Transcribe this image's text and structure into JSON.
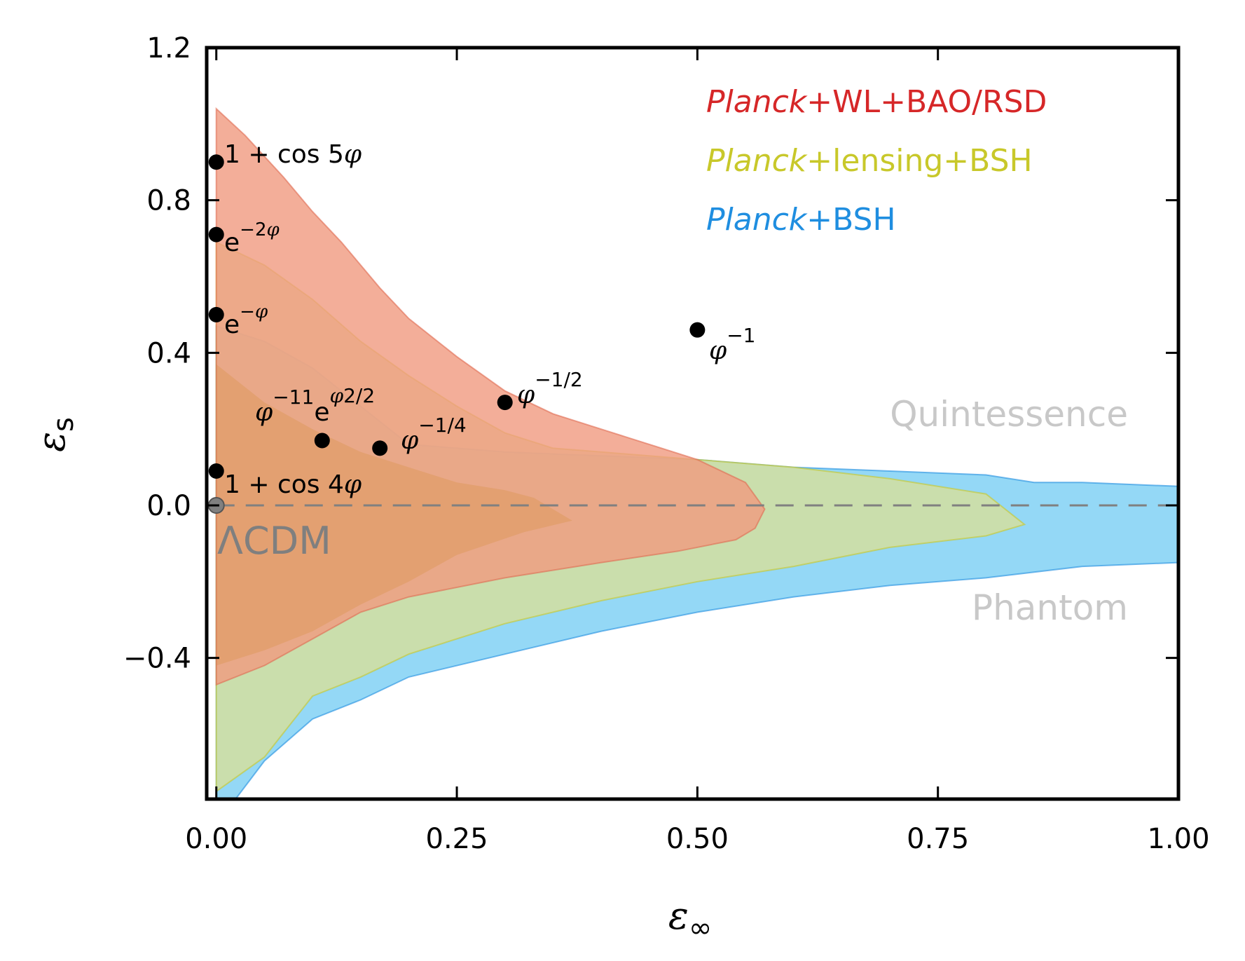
{
  "chart_data": {
    "type": "area",
    "xlabel": "ε∞",
    "ylabel": "εs",
    "xlim": [
      -0.01,
      1.0
    ],
    "ylim": [
      -0.77,
      1.2
    ],
    "xticks": [
      "0.00",
      "0.25",
      "0.50",
      "0.75",
      "1.00"
    ],
    "yticks": [
      "−0.4",
      "0.0",
      "0.4",
      "0.8",
      "1.2"
    ],
    "grid": false,
    "legend_position": "top-right",
    "legend": [
      {
        "italic": "Planck",
        "rest": "+WL+BAO/RSD",
        "color": "#d62728"
      },
      {
        "italic": "Planck",
        "rest": "+lensing+BSH",
        "color": "#c8c82a"
      },
      {
        "italic": "Planck",
        "rest": "+BSH",
        "color": "#1f8ee0"
      }
    ],
    "series": [
      {
        "name": "Planck+BSH",
        "fill": "#8ed6f5",
        "outer": [
          [
            0,
            0.47
          ],
          [
            0.05,
            0.43
          ],
          [
            0.1,
            0.36
          ],
          [
            0.15,
            0.26
          ],
          [
            0.2,
            0.16
          ],
          [
            0.3,
            0.14
          ],
          [
            0.4,
            0.13
          ],
          [
            0.5,
            0.12
          ],
          [
            0.6,
            0.1
          ],
          [
            0.7,
            0.09
          ],
          [
            0.8,
            0.08
          ],
          [
            0.85,
            0.06
          ],
          [
            0.9,
            0.06
          ],
          [
            1.0,
            0.05
          ],
          [
            1.0,
            -0.15
          ],
          [
            0.9,
            -0.16
          ],
          [
            0.8,
            -0.19
          ],
          [
            0.7,
            -0.21
          ],
          [
            0.6,
            -0.24
          ],
          [
            0.5,
            -0.28
          ],
          [
            0.4,
            -0.33
          ],
          [
            0.3,
            -0.39
          ],
          [
            0.2,
            -0.45
          ],
          [
            0.15,
            -0.51
          ],
          [
            0.1,
            -0.56
          ],
          [
            0.05,
            -0.67
          ],
          [
            0.02,
            -0.77
          ],
          [
            0,
            -0.77
          ]
        ]
      },
      {
        "name": "Planck+lensing+BSH",
        "fill": "#d7e09a",
        "outer": [
          [
            0,
            0.69
          ],
          [
            0.05,
            0.63
          ],
          [
            0.1,
            0.54
          ],
          [
            0.15,
            0.43
          ],
          [
            0.2,
            0.34
          ],
          [
            0.25,
            0.26
          ],
          [
            0.3,
            0.19
          ],
          [
            0.35,
            0.15
          ],
          [
            0.4,
            0.14
          ],
          [
            0.5,
            0.12
          ],
          [
            0.6,
            0.1
          ],
          [
            0.7,
            0.07
          ],
          [
            0.8,
            0.03
          ],
          [
            0.84,
            -0.05
          ],
          [
            0.8,
            -0.08
          ],
          [
            0.7,
            -0.11
          ],
          [
            0.6,
            -0.16
          ],
          [
            0.5,
            -0.2
          ],
          [
            0.4,
            -0.25
          ],
          [
            0.3,
            -0.31
          ],
          [
            0.2,
            -0.39
          ],
          [
            0.15,
            -0.45
          ],
          [
            0.1,
            -0.5
          ],
          [
            0.05,
            -0.66
          ],
          [
            0,
            -0.75
          ]
        ],
        "inner": [
          [
            0,
            0.37
          ],
          [
            0.05,
            0.27
          ],
          [
            0.1,
            0.2
          ],
          [
            0.15,
            0.14
          ],
          [
            0.2,
            0.1
          ],
          [
            0.25,
            0.06
          ],
          [
            0.3,
            0.04
          ],
          [
            0.33,
            0.02
          ],
          [
            0.37,
            -0.04
          ],
          [
            0.32,
            -0.07
          ],
          [
            0.25,
            -0.13
          ],
          [
            0.2,
            -0.2
          ],
          [
            0.15,
            -0.26
          ],
          [
            0.1,
            -0.33
          ],
          [
            0.05,
            -0.38
          ],
          [
            0,
            -0.42
          ]
        ]
      },
      {
        "name": "Planck+WL+BAO/RSD",
        "fill": "#f09a80",
        "stroke": "#e06a52",
        "outer": [
          [
            0,
            1.04
          ],
          [
            0.03,
            0.97
          ],
          [
            0.07,
            0.86
          ],
          [
            0.1,
            0.77
          ],
          [
            0.13,
            0.69
          ],
          [
            0.17,
            0.57
          ],
          [
            0.2,
            0.49
          ],
          [
            0.25,
            0.39
          ],
          [
            0.3,
            0.3
          ],
          [
            0.35,
            0.24
          ],
          [
            0.4,
            0.2
          ],
          [
            0.45,
            0.16
          ],
          [
            0.5,
            0.12
          ],
          [
            0.55,
            0.06
          ],
          [
            0.57,
            -0.01
          ],
          [
            0.56,
            -0.06
          ],
          [
            0.54,
            -0.09
          ],
          [
            0.48,
            -0.12
          ],
          [
            0.4,
            -0.15
          ],
          [
            0.3,
            -0.19
          ],
          [
            0.2,
            -0.24
          ],
          [
            0.15,
            -0.28
          ],
          [
            0.1,
            -0.35
          ],
          [
            0.05,
            -0.42
          ],
          [
            0,
            -0.47
          ]
        ]
      }
    ],
    "points": [
      {
        "label": "1 + cos 5φ",
        "x": 0.0,
        "y": 0.9
      },
      {
        "label": "e^{−2φ}",
        "x": 0.0,
        "y": 0.71
      },
      {
        "label": "e^{−φ}",
        "x": 0.0,
        "y": 0.5
      },
      {
        "label": "φ^{−1}",
        "x": 0.5,
        "y": 0.46
      },
      {
        "label": "φ^{−1/2}",
        "x": 0.3,
        "y": 0.27
      },
      {
        "label": "φ^{−1/4}",
        "x": 0.17,
        "y": 0.15
      },
      {
        "label": "φ^{−1}",
        "x": 0.11,
        "y": 0.17
      },
      {
        "label": "1 + cos 4φ",
        "x": 0.0,
        "y": 0.09
      },
      {
        "label": "ΛCDM",
        "x": 0.0,
        "y": 0.0
      }
    ],
    "annotations": [
      "Quintessence",
      "Phantom",
      "ΛCDM",
      "1e^{φ²/2}"
    ],
    "reference_line": {
      "y": 0.0,
      "style": "dashed",
      "color": "#808080"
    }
  },
  "labels": {
    "quintessence": "Quintessence",
    "phantom": "Phantom",
    "lcdm": "ΛCDM",
    "cos5": "1 + cos 5",
    "cos4": "1 + cos 4",
    "e": "e",
    "exp2": "−2",
    "exp1": "−",
    "phi": "φ",
    "m1": "−1",
    "m11": "−11",
    "mhalf": "−1/2",
    "mquarter": "−1/4",
    "phi2half": "2/2",
    "x_main": "ε",
    "x_sub": "∞",
    "y_main": "ε",
    "y_sub": "s"
  }
}
